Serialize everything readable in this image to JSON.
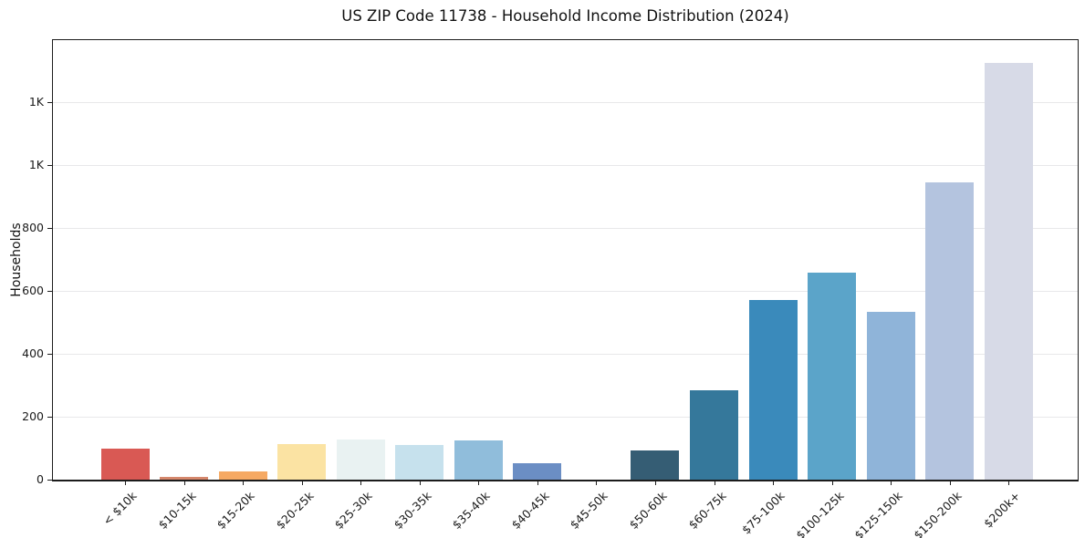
{
  "chart_data": {
    "type": "bar",
    "title": "US ZIP Code 11738 - Household Income Distribution (2024)",
    "xlabel": "",
    "ylabel": "Households",
    "categories": [
      "< $10k",
      "$10-15k",
      "$15-20k",
      "$20-25k",
      "$25-30k",
      "$30-35k",
      "$35-40k",
      "$40-45k",
      "$45-50k",
      "$50-60k",
      "$60-75k",
      "$75-100k",
      "$100-125k",
      "$125-150k",
      "$150-200k",
      "$200k+"
    ],
    "values": [
      98,
      10,
      25,
      112,
      128,
      110,
      126,
      52,
      0,
      93,
      285,
      571,
      658,
      534,
      946,
      1325
    ],
    "bar_colors": [
      "#d95954",
      "#d5876c",
      "#f6a963",
      "#fbe3a3",
      "#e9f2f2",
      "#c6e1ed",
      "#90bddb",
      "#6b8ec4",
      "#507693",
      "#355d74",
      "#35789b",
      "#3a8abb",
      "#5ba4c9",
      "#8fb4d9",
      "#b4c4df",
      "#d7dae7"
    ],
    "yticks": [
      {
        "value": 0,
        "label": "0"
      },
      {
        "value": 200,
        "label": "200"
      },
      {
        "value": 400,
        "label": "400"
      },
      {
        "value": 600,
        "label": "600"
      },
      {
        "value": 800,
        "label": "800"
      },
      {
        "value": 1000,
        "label": "1K"
      },
      {
        "value": 1200,
        "label": "1K"
      }
    ],
    "ylim": [
      0,
      1398
    ],
    "grid": "horizontal",
    "grid_color": "#e8e8ea",
    "background_color": "#ffffff",
    "spine_color": "#1c1c1c",
    "legend": "none"
  }
}
